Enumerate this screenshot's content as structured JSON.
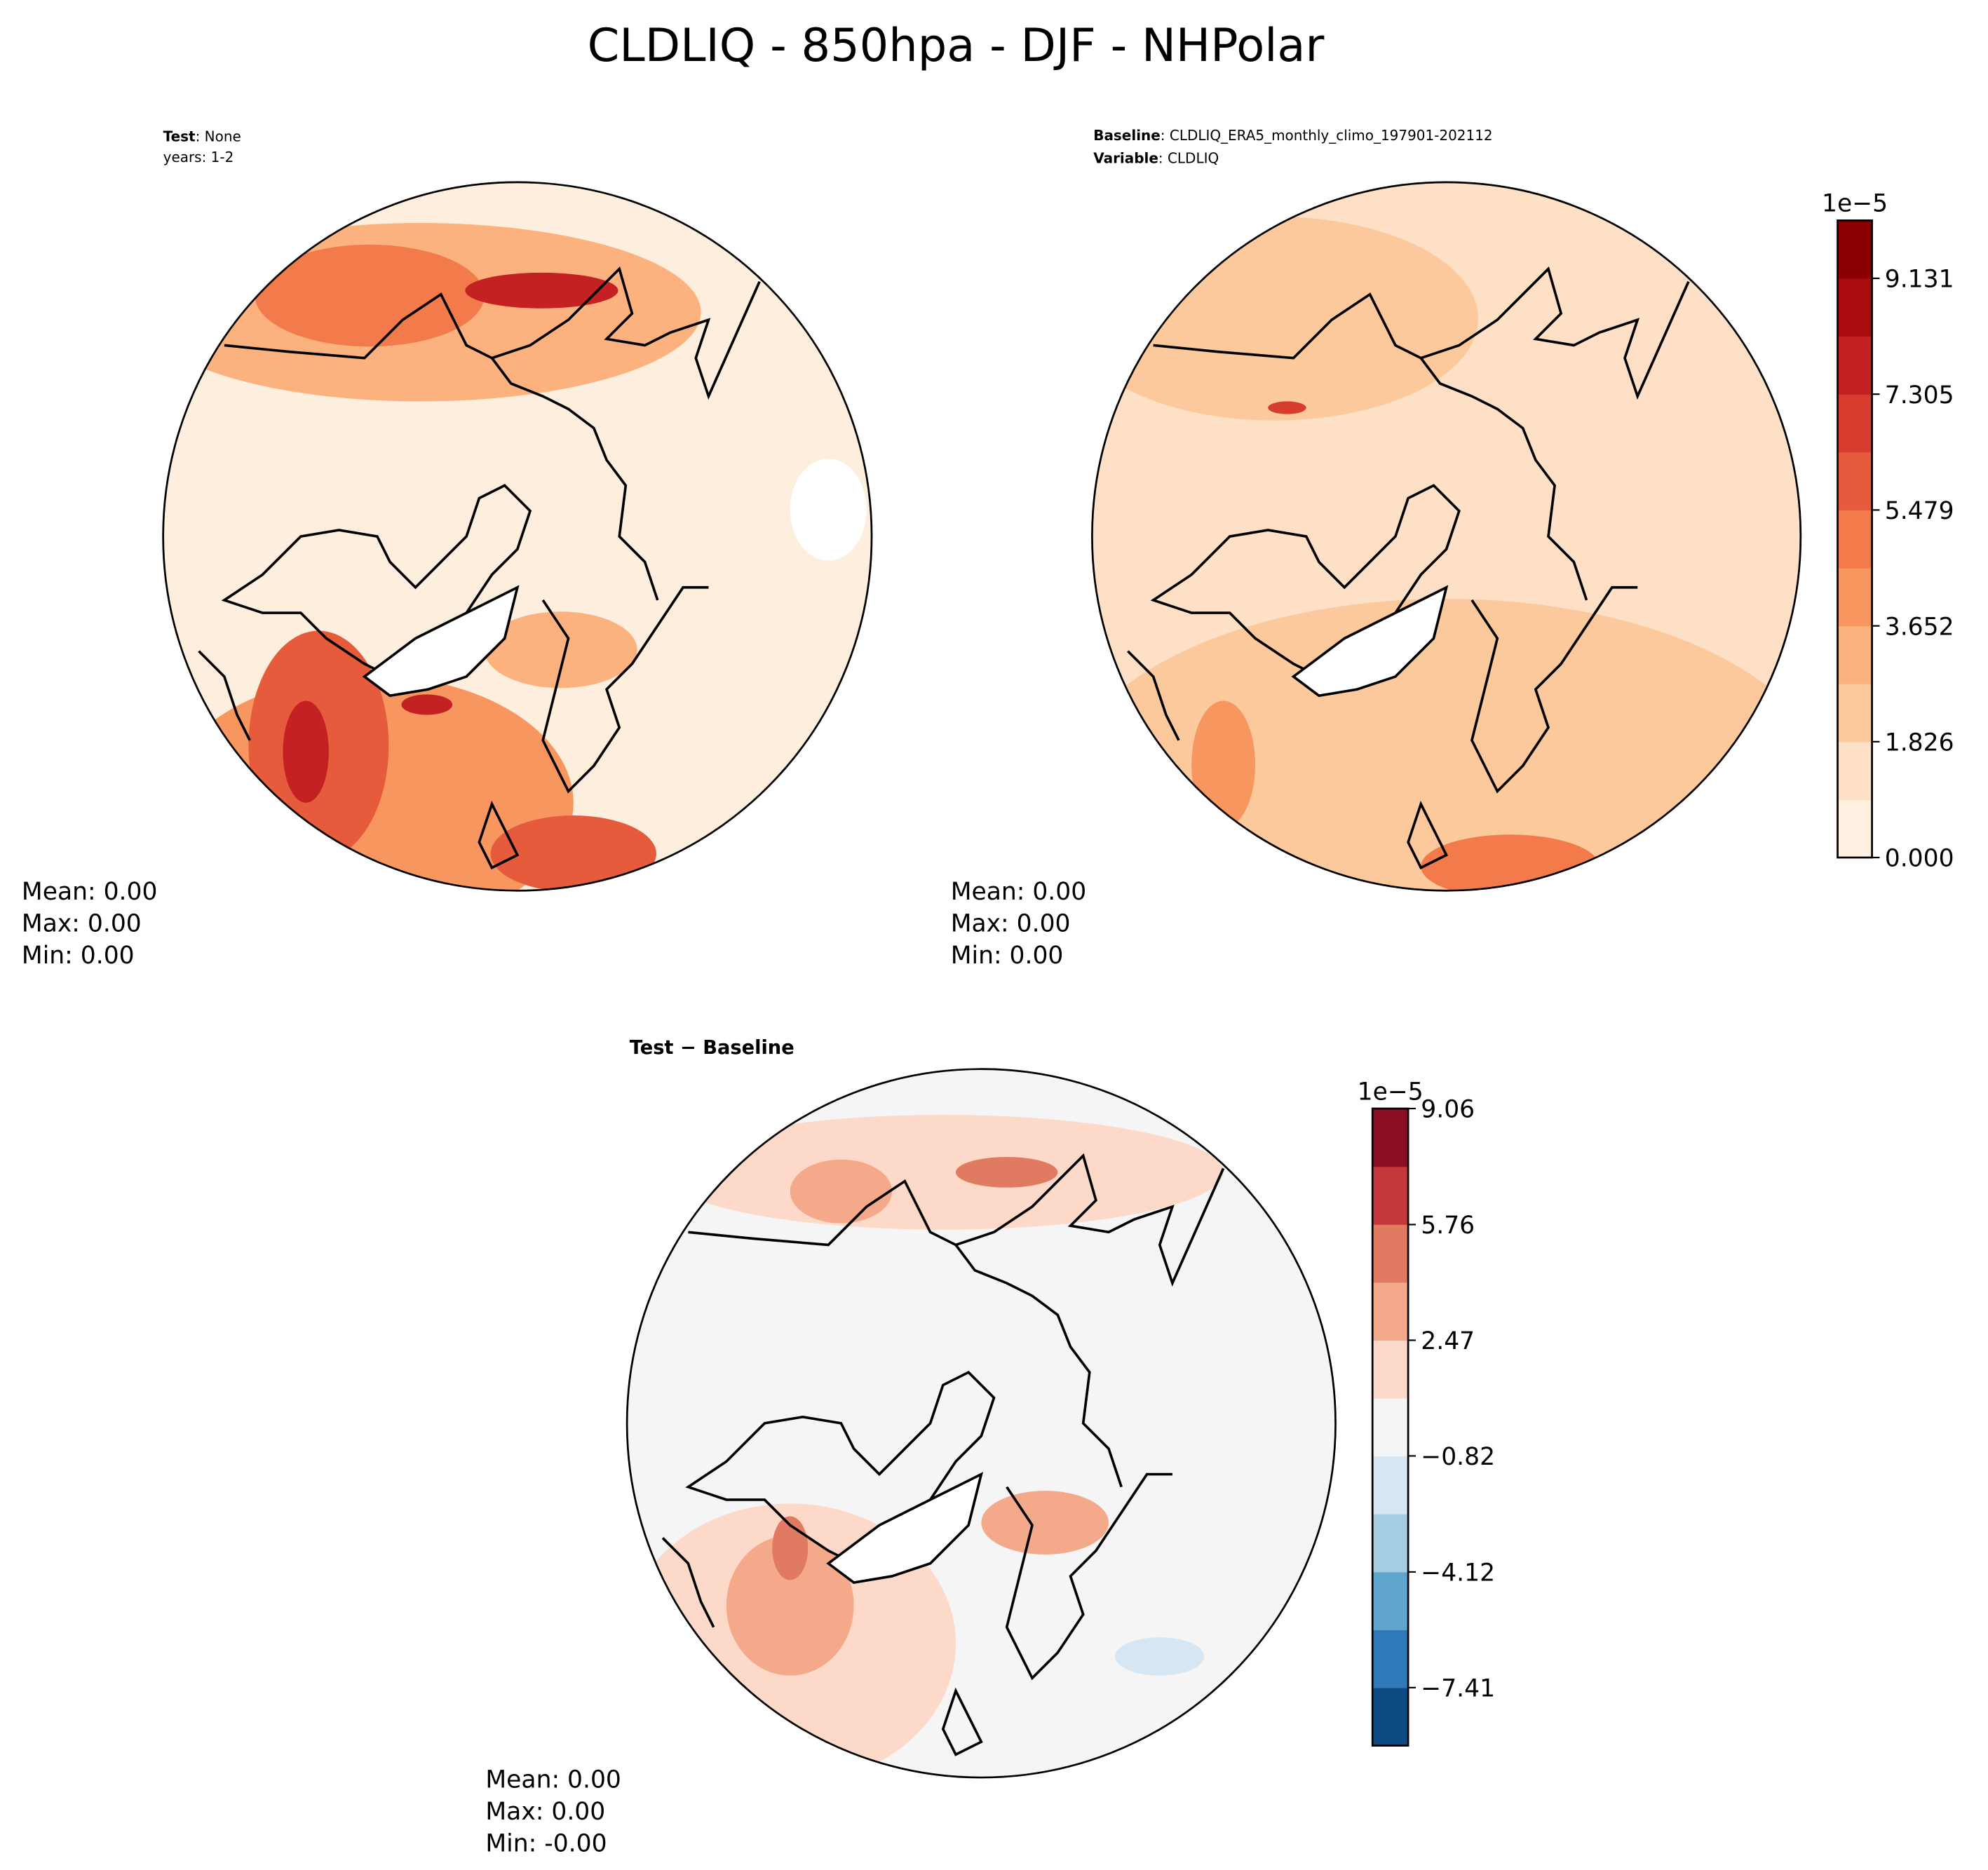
{
  "title": "CLDLIQ - 850hpa - DJF - NHPolar",
  "panels": [
    {
      "lines": [
        {
          "key": "Test",
          "text": ": None"
        },
        {
          "text": "years: 1-2"
        }
      ],
      "stats": [
        "Mean:  0.00",
        "Max:  0.00",
        "Min:  0.00"
      ]
    },
    {
      "lines": [
        {
          "key": "Baseline",
          "text": ": CLDLIQ_ERA5_monthly_climo_197901-202112"
        },
        {
          "key": "Variable",
          "text": ": CLDLIQ"
        }
      ],
      "stats": [
        "Mean:  0.00",
        "Max:  0.00",
        "Min:  0.00"
      ]
    },
    {
      "lines": [
        {
          "key": "Test − Baseline"
        }
      ],
      "stats": [
        "Mean:  0.00",
        "Max:  0.00",
        "Min: -0.00"
      ]
    }
  ],
  "colorbars": [
    {
      "offset_label": "1e−5",
      "lim": [
        0,
        10.044
      ],
      "ticks": [
        {
          "value": 0,
          "label": "0.000"
        },
        1.826,
        3.652,
        5.479,
        7.305,
        9.131
      ],
      "colors": [
        "#fff0e1",
        "#fde0c5",
        "#fcc99d",
        "#fbb27e",
        "#f89660",
        "#f37a4b",
        "#e55b3b",
        "#d63d2e",
        "#c32122",
        "#a90c0e",
        "#8a0000"
      ]
    },
    {
      "offset_label": "1e−5",
      "lim": [
        -9.06,
        9.06
      ],
      "ticks": [
        {
          "value": -7.41,
          "label": "−7.41"
        },
        {
          "value": -4.12,
          "label": "−4.12"
        },
        {
          "value": -0.82,
          "label": "−0.82"
        },
        2.47,
        5.76,
        9.06
      ],
      "colors": [
        "#0e4a84",
        "#2f79b8",
        "#5fa5ce",
        "#a5cde2",
        "#d6e6f2",
        "#f5f5f5",
        "#fcd9c9",
        "#f4a98a",
        "#e07a60",
        "#c4373a",
        "#8b0e23"
      ]
    }
  ]
}
